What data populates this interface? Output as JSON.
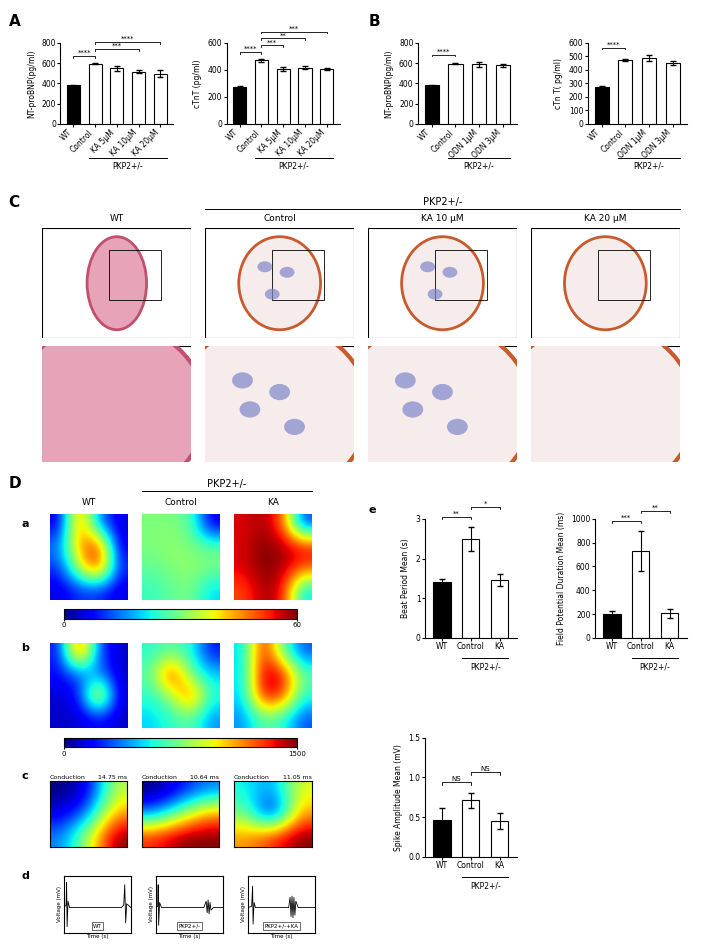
{
  "panel_labels": [
    "A",
    "B",
    "C",
    "D",
    "a",
    "b",
    "c",
    "d",
    "e"
  ],
  "chart_data": [
    {
      "type": "bar",
      "ylabel": "NT-proBNP(pg/ml)",
      "categories": [
        "WT",
        "Control",
        "KA 5μM",
        "KA 10μM",
        "KA 20μM"
      ],
      "values": [
        380,
        595,
        550,
        515,
        495
      ],
      "errors": [
        5,
        8,
        25,
        15,
        35
      ],
      "colors": [
        "#000000",
        "#ffffff",
        "#ffffff",
        "#ffffff",
        "#ffffff"
      ],
      "ylim": [
        0,
        800
      ],
      "yticks": [
        0,
        200,
        400,
        600,
        800
      ],
      "group": {
        "label": "PKP2+/-",
        "from": 1,
        "to": 4
      },
      "significance": [
        {
          "from": 0,
          "to": 1,
          "label": "****"
        },
        {
          "from": 1,
          "to": 3,
          "label": "***"
        },
        {
          "from": 1,
          "to": 4,
          "label": "****"
        }
      ]
    },
    {
      "type": "bar",
      "ylabel": "cTnT (pg/ml)",
      "categories": [
        "WT",
        "Control",
        "KA 5μM",
        "KA 10μM",
        "KA 20μM"
      ],
      "values": [
        272,
        470,
        405,
        415,
        405
      ],
      "errors": [
        5,
        10,
        15,
        12,
        5
      ],
      "colors": [
        "#000000",
        "#ffffff",
        "#ffffff",
        "#ffffff",
        "#ffffff"
      ],
      "ylim": [
        0,
        600
      ],
      "yticks": [
        0,
        200,
        400,
        600
      ],
      "group": {
        "label": "PKP2+/-",
        "from": 1,
        "to": 4
      },
      "significance": [
        {
          "from": 0,
          "to": 1,
          "label": "****"
        },
        {
          "from": 1,
          "to": 2,
          "label": "***"
        },
        {
          "from": 1,
          "to": 3,
          "label": "**"
        },
        {
          "from": 1,
          "to": 4,
          "label": "***"
        }
      ]
    },
    {
      "type": "bar",
      "ylabel": "NT-proBNP(pg/ml)",
      "categories": [
        "WT",
        "Control",
        "ODN 1μM",
        "ODN 3μM"
      ],
      "values": [
        380,
        595,
        590,
        580
      ],
      "errors": [
        5,
        5,
        25,
        15
      ],
      "colors": [
        "#000000",
        "#ffffff",
        "#ffffff",
        "#ffffff"
      ],
      "ylim": [
        0,
        800
      ],
      "yticks": [
        0,
        200,
        400,
        600,
        800
      ],
      "group": {
        "label": "PKP2+/-",
        "from": 1,
        "to": 3
      },
      "significance": [
        {
          "from": 0,
          "to": 1,
          "label": "****"
        }
      ]
    },
    {
      "type": "bar",
      "ylabel": "cTn T( pg/ml)",
      "categories": [
        "WT",
        "Control",
        "ODN 1μM",
        "ODN 3μM"
      ],
      "values": [
        275,
        470,
        487,
        450
      ],
      "errors": [
        5,
        8,
        25,
        12
      ],
      "colors": [
        "#000000",
        "#ffffff",
        "#ffffff",
        "#ffffff"
      ],
      "ylim": [
        0,
        600
      ],
      "yticks": [
        0,
        100,
        200,
        300,
        400,
        500,
        600
      ],
      "group": {
        "label": "PKP2+/-",
        "from": 1,
        "to": 3
      },
      "significance": [
        {
          "from": 0,
          "to": 1,
          "label": "****"
        }
      ]
    },
    {
      "type": "bar",
      "ylabel": "Beat Period Mean (s)",
      "categories": [
        "WT",
        "Control",
        "KA"
      ],
      "values": [
        1.4,
        2.5,
        1.45
      ],
      "errors": [
        0.08,
        0.3,
        0.15
      ],
      "colors": [
        "#000000",
        "#ffffff",
        "#ffffff"
      ],
      "ylim": [
        0,
        3
      ],
      "yticks": [
        0,
        1,
        2,
        3
      ],
      "group": {
        "label": "PKP2+/-",
        "from": 1,
        "to": 2
      },
      "significance": [
        {
          "from": 0,
          "to": 1,
          "label": "**"
        },
        {
          "from": 1,
          "to": 2,
          "label": "*"
        }
      ]
    },
    {
      "type": "bar",
      "ylabel": "Field Potential Duration Mean (ms)",
      "categories": [
        "WT",
        "Control",
        "KA"
      ],
      "values": [
        200,
        730,
        205
      ],
      "errors": [
        25,
        170,
        35
      ],
      "colors": [
        "#000000",
        "#ffffff",
        "#ffffff"
      ],
      "ylim": [
        0,
        1000
      ],
      "yticks": [
        0,
        200,
        400,
        600,
        800,
        1000
      ],
      "group": {
        "label": "PKP2+/-",
        "from": 1,
        "to": 2
      },
      "significance": [
        {
          "from": 0,
          "to": 1,
          "label": "***"
        },
        {
          "from": 1,
          "to": 2,
          "label": "**"
        }
      ]
    },
    {
      "type": "bar",
      "ylabel": "Spike Amplitude Mean (mV)",
      "categories": [
        "WT",
        "Control",
        "KA"
      ],
      "values": [
        0.47,
        0.71,
        0.45
      ],
      "errors": [
        0.14,
        0.1,
        0.1
      ],
      "colors": [
        "#000000",
        "#ffffff",
        "#ffffff"
      ],
      "ylim": [
        0,
        1.5
      ],
      "yticks": [
        {
          "value": 0,
          "label": "0.0"
        },
        {
          "value": 0.5,
          "label": "0.5"
        },
        {
          "value": 1.0,
          "label": "1.0"
        },
        {
          "value": 1.5,
          "label": "1.5"
        }
      ],
      "group": {
        "label": "PKP2+/-",
        "from": 1,
        "to": 2
      },
      "significance": [
        {
          "from": 0,
          "to": 1,
          "label": "NS"
        },
        {
          "from": 1,
          "to": 2,
          "label": "NS"
        }
      ]
    }
  ],
  "histology": {
    "header": "PKP2+/-",
    "columns": [
      "WT",
      "Control",
      "KA 10 μM",
      "KA 20 μM"
    ]
  },
  "mea": {
    "header": "PKP2+/-",
    "columns": [
      "WT",
      "Control",
      "KA"
    ],
    "activity_maps": [
      {
        "colorbar": {
          "range": [
            0,
            60
          ],
          "ticks": [
            0,
            60
          ]
        },
        "cells": [
          [
            [
              5,
              50,
              15,
              5
            ],
            [
              15,
              45,
              55,
              5
            ],
            [
              10,
              35,
              55,
              10
            ],
            [
              5,
              10,
              10,
              5
            ]
          ],
          [
            [
              30,
              30,
              28,
              5
            ],
            [
              30,
              32,
              30,
              28
            ],
            [
              28,
              30,
              32,
              30
            ],
            [
              25,
              28,
              30,
              20
            ]
          ],
          [
            [
              55,
              58,
              50,
              10
            ],
            [
              55,
              60,
              58,
              55
            ],
            [
              55,
              60,
              58,
              50
            ],
            [
              50,
              58,
              55,
              20
            ]
          ]
        ]
      },
      {
        "colorbar": {
          "range": [
            0,
            1500
          ],
          "ticks": [
            0,
            1500
          ]
        },
        "cells": [
          [
            [
              200,
              1400,
              300,
              100
            ],
            [
              200,
              300,
              400,
              100
            ],
            [
              100,
              200,
              1200,
              100
            ],
            [
              100,
              100,
              200,
              100
            ]
          ],
          [
            [
              600,
              700,
              600,
              200
            ],
            [
              700,
              1400,
              700,
              500
            ],
            [
              600,
              800,
              1300,
              600
            ],
            [
              500,
              600,
              700,
              400
            ]
          ],
          [
            [
              500,
              1400,
              700,
              300
            ],
            [
              500,
              1450,
              1400,
              700
            ],
            [
              500,
              1400,
              1300,
              600
            ],
            [
              400,
              700,
              600,
              300
            ]
          ]
        ]
      }
    ],
    "conduction": {
      "title": "Conduction",
      "times": [
        "14.75 ms",
        "10.64 ms",
        "11.05 ms"
      ],
      "cells": [
        [
          [
            2,
            3,
            9
          ],
          [
            3,
            5,
            11
          ],
          [
            5,
            9,
            14
          ]
        ],
        [
          [
            2,
            3,
            4
          ],
          [
            4,
            6,
            8
          ],
          [
            9,
            10,
            10
          ]
        ],
        [
          [
            6,
            5,
            8
          ],
          [
            7,
            3,
            9
          ],
          [
            9,
            10,
            11
          ]
        ]
      ]
    },
    "traces": {
      "xlabel": "Time (s)",
      "ylabel": "Voltage (mV)",
      "tick_labels": false,
      "xlim": [
        0,
        1.4
      ],
      "ylim": [
        -0.2,
        0.25
      ],
      "series": [
        {
          "name": "WT",
          "x": [
            0,
            0.05,
            0.06,
            0.07,
            0.09,
            0.12,
            0.3,
            0.6,
            0.9,
            1.2,
            1.25,
            1.27,
            1.29,
            1.31,
            1.4
          ],
          "y": [
            0,
            0.02,
            0.2,
            -0.15,
            0.05,
            0,
            0,
            0,
            0,
            0,
            0.02,
            0.18,
            -0.12,
            0.03,
            0
          ]
        },
        {
          "name": "PKP2+/-",
          "x": [
            0,
            0.04,
            0.05,
            0.06,
            0.08,
            0.12,
            0.5,
            1.0,
            1.05,
            1.07,
            1.09,
            1.11,
            1.13,
            1.15,
            1.2,
            1.4
          ],
          "y": [
            0,
            0.01,
            0.18,
            -0.14,
            0.04,
            0,
            0,
            0,
            0.05,
            -0.04,
            0.06,
            -0.05,
            0.04,
            -0.02,
            0,
            0
          ]
        },
        {
          "name": "PKP2+/-+KA",
          "x": [
            0,
            0.08,
            0.1,
            0.11,
            0.13,
            0.16,
            0.5,
            0.85,
            0.88,
            0.9,
            0.92,
            0.94,
            0.96,
            0.98,
            1.0,
            1.05,
            1.4
          ],
          "y": [
            0,
            0.01,
            0.17,
            -0.13,
            0.04,
            0,
            0,
            0,
            0.08,
            -0.07,
            0.09,
            -0.08,
            0.08,
            -0.06,
            0.05,
            0,
            0
          ]
        }
      ]
    }
  }
}
